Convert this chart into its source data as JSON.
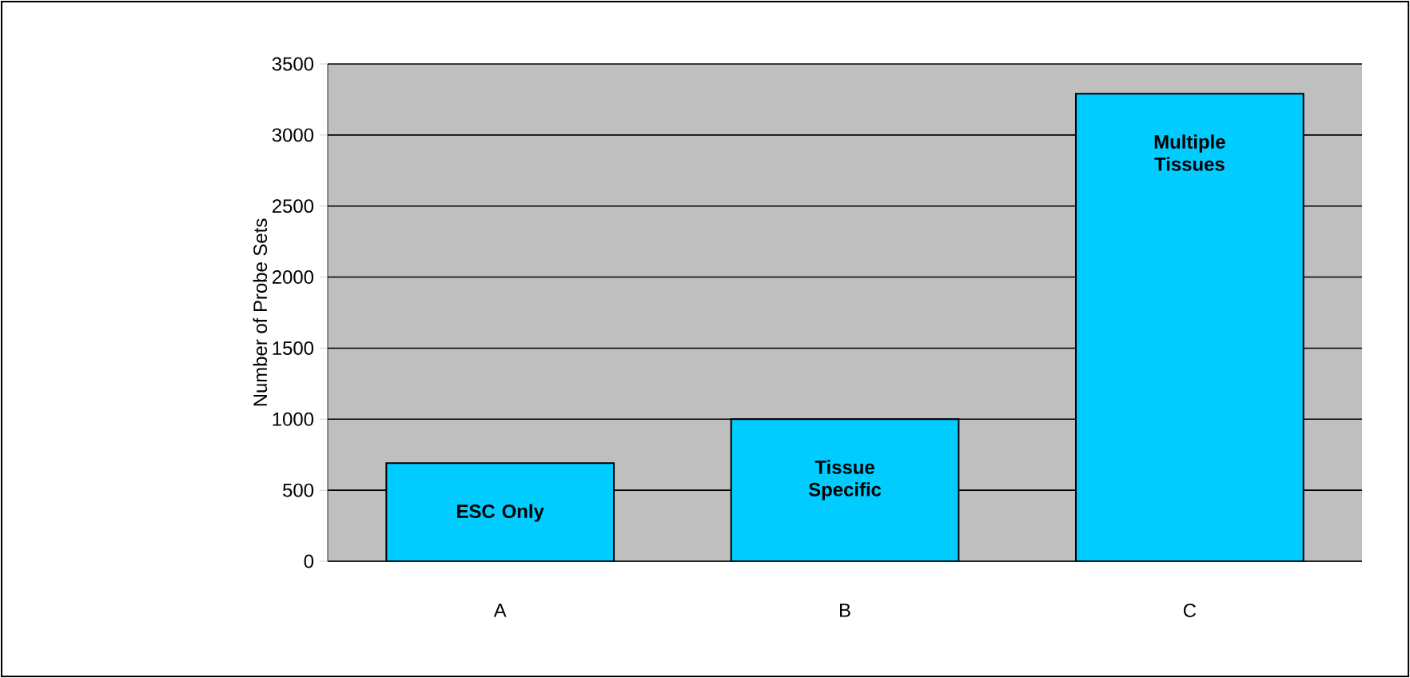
{
  "chart_data": {
    "type": "bar",
    "ylabel": "Number of Probe Sets",
    "categories": [
      "A",
      "B",
      "C"
    ],
    "values": [
      690,
      1000,
      3290
    ],
    "color": "#00ccff",
    "ylim": [
      0,
      3500
    ],
    "yticks": [
      0,
      500,
      1000,
      1500,
      2000,
      2500,
      3000,
      3500
    ],
    "grid": "y",
    "annotations": [
      "ESC Only",
      "Tissue Specific",
      "Multiple Tissues"
    ]
  }
}
